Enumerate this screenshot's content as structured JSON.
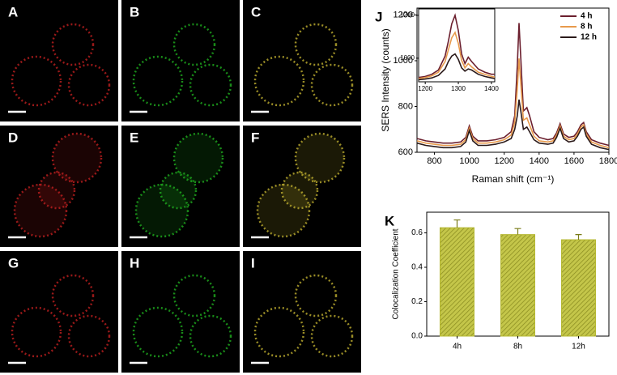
{
  "figure": {
    "image_panels": [
      "A",
      "B",
      "C",
      "D",
      "E",
      "F",
      "G",
      "H",
      "I"
    ]
  },
  "chart_data": [
    {
      "type": "line",
      "panel_label": "J",
      "xlabel": "Raman shift (cm⁻¹)",
      "ylabel": "SERS Intensity (counts)",
      "x": [
        700,
        750,
        800,
        850,
        900,
        950,
        980,
        1000,
        1020,
        1050,
        1100,
        1150,
        1200,
        1240,
        1260,
        1275,
        1285,
        1295,
        1310,
        1330,
        1345,
        1370,
        1400,
        1450,
        1480,
        1500,
        1520,
        1540,
        1570,
        1600,
        1620,
        1640,
        1655,
        1670,
        1700,
        1750,
        1800
      ],
      "series": [
        {
          "name": "4 h",
          "color": "#6b1f2e",
          "values": [
            660,
            650,
            645,
            640,
            640,
            645,
            665,
            715,
            670,
            650,
            650,
            655,
            665,
            690,
            760,
            980,
            1165,
            1010,
            780,
            795,
            760,
            690,
            665,
            655,
            660,
            685,
            725,
            680,
            665,
            670,
            690,
            720,
            730,
            690,
            655,
            640,
            630
          ]
        },
        {
          "name": "8 h",
          "color": "#e89a4c",
          "values": [
            650,
            640,
            635,
            630,
            630,
            635,
            655,
            705,
            660,
            640,
            640,
            645,
            655,
            675,
            730,
            880,
            1010,
            900,
            740,
            750,
            720,
            670,
            650,
            645,
            650,
            675,
            715,
            670,
            655,
            660,
            680,
            710,
            720,
            680,
            645,
            630,
            620
          ]
        },
        {
          "name": "12 h",
          "color": "#2b1a1a",
          "values": [
            640,
            630,
            625,
            620,
            620,
            625,
            645,
            695,
            650,
            630,
            630,
            635,
            645,
            660,
            700,
            760,
            830,
            780,
            700,
            710,
            690,
            655,
            640,
            635,
            640,
            665,
            705,
            660,
            645,
            650,
            670,
            700,
            710,
            670,
            635,
            620,
            612
          ]
        }
      ],
      "xlim": [
        700,
        1800
      ],
      "ylim": [
        600,
        1230
      ],
      "xticks": [
        800,
        1000,
        1200,
        1400,
        1600,
        1800
      ],
      "yticks": [
        600,
        800,
        1000,
        1200
      ],
      "legend": "upper right"
    },
    {
      "type": "line",
      "x": [
        1180,
        1200,
        1220,
        1240,
        1260,
        1270,
        1280,
        1290,
        1300,
        1310,
        1320,
        1330,
        1340,
        1360,
        1380,
        1400,
        1410
      ],
      "series": [
        {
          "color": "#6b1f2e",
          "values": [
            910,
            915,
            925,
            945,
            1010,
            1080,
            1160,
            1200,
            1130,
            1020,
            975,
            1005,
            985,
            950,
            935,
            925,
            925
          ]
        },
        {
          "color": "#e89a4c",
          "values": [
            905,
            910,
            918,
            935,
            985,
            1040,
            1095,
            1120,
            1070,
            990,
            955,
            975,
            960,
            935,
            925,
            915,
            912
          ]
        },
        {
          "color": "#2b1a1a",
          "values": [
            900,
            903,
            908,
            920,
            950,
            985,
            1010,
            1020,
            995,
            955,
            940,
            950,
            945,
            925,
            915,
            908,
            905
          ]
        }
      ],
      "xlim": [
        1180,
        1410
      ],
      "ylim": [
        890,
        1230
      ],
      "xticks": [
        1200,
        1300,
        1400
      ],
      "yticks": [
        1000,
        1200
      ]
    },
    {
      "type": "bar",
      "panel_label": "K",
      "ylabel": "Colocalization Coefficient",
      "categories": [
        "4h",
        "8h",
        "12h"
      ],
      "values": [
        0.63,
        0.59,
        0.56
      ],
      "errors": [
        0.045,
        0.035,
        0.03
      ],
      "color": "#b5b832",
      "ylim": [
        0,
        0.72
      ],
      "yticks": [
        {
          "value": 0,
          "label": "0.0"
        },
        0.2,
        0.4,
        0.6
      ]
    }
  ]
}
